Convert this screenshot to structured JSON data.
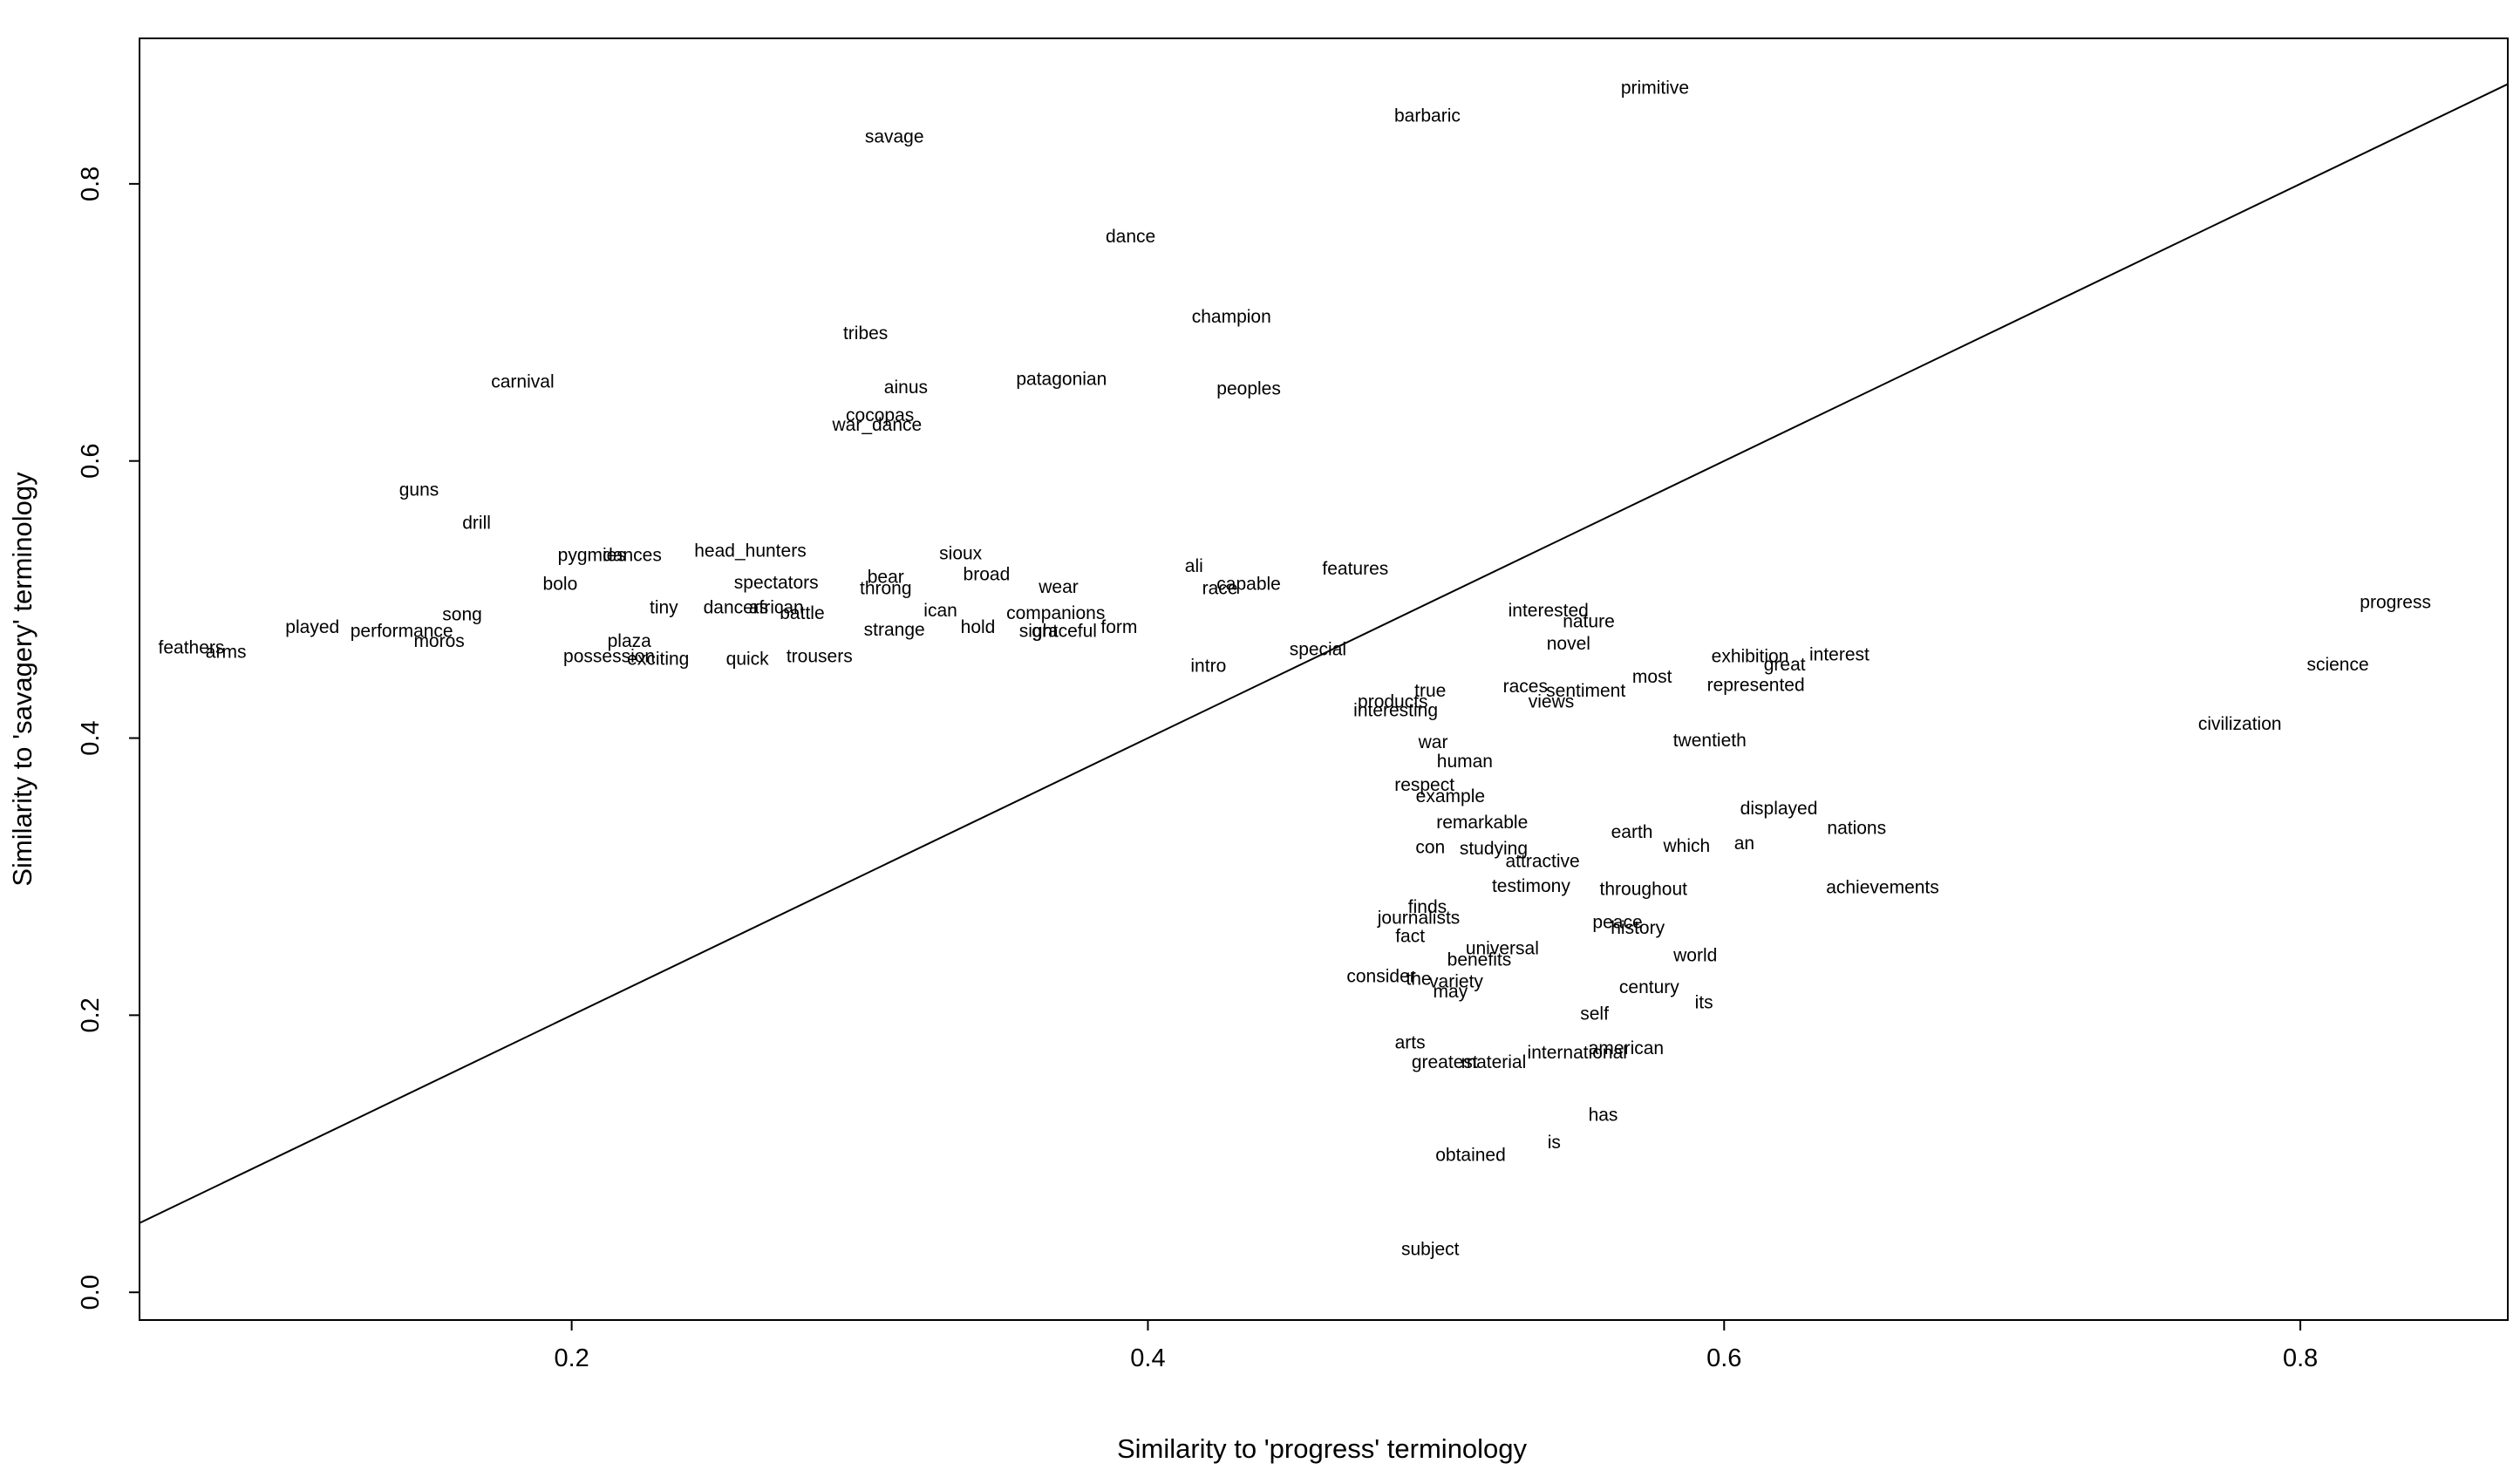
{
  "chart_data": {
    "type": "scatter",
    "title": "",
    "xlabel": "Similarity to 'progress' terminology",
    "ylabel": "Similarity to 'savagery' terminology",
    "xlim": [
      0.05,
      0.872
    ],
    "ylim": [
      -0.02,
      0.905
    ],
    "xticks": [
      "0.2",
      "0.4",
      "0.6",
      "0.8"
    ],
    "yticks": [
      "0.0",
      "0.2",
      "0.4",
      "0.6",
      "0.8"
    ],
    "grid": false,
    "legend": "none",
    "reference_line": {
      "intercept": 0.0,
      "slope": 1.0
    },
    "points": [
      {
        "label": "primitive",
        "x": 0.576,
        "y": 0.869
      },
      {
        "label": "barbaric",
        "x": 0.497,
        "y": 0.849
      },
      {
        "label": "savage",
        "x": 0.312,
        "y": 0.834
      },
      {
        "label": "dance",
        "x": 0.394,
        "y": 0.762
      },
      {
        "label": "champion",
        "x": 0.429,
        "y": 0.704
      },
      {
        "label": "tribes",
        "x": 0.302,
        "y": 0.692
      },
      {
        "label": "carnival",
        "x": 0.183,
        "y": 0.657
      },
      {
        "label": "patagonian",
        "x": 0.37,
        "y": 0.659
      },
      {
        "label": "ainus",
        "x": 0.316,
        "y": 0.653
      },
      {
        "label": "peoples",
        "x": 0.435,
        "y": 0.652
      },
      {
        "label": "cocopas",
        "x": 0.307,
        "y": 0.633
      },
      {
        "label": "war_dance",
        "x": 0.306,
        "y": 0.626
      },
      {
        "label": "guns",
        "x": 0.147,
        "y": 0.579
      },
      {
        "label": "drill",
        "x": 0.167,
        "y": 0.555
      },
      {
        "label": "head_hunters",
        "x": 0.262,
        "y": 0.535
      },
      {
        "label": "pygmies",
        "x": 0.207,
        "y": 0.532
      },
      {
        "label": "dances",
        "x": 0.221,
        "y": 0.532
      },
      {
        "label": "sioux",
        "x": 0.335,
        "y": 0.533
      },
      {
        "label": "ali",
        "x": 0.416,
        "y": 0.524
      },
      {
        "label": "features",
        "x": 0.472,
        "y": 0.522
      },
      {
        "label": "broad",
        "x": 0.344,
        "y": 0.518
      },
      {
        "label": "bear",
        "x": 0.309,
        "y": 0.516
      },
      {
        "label": "spectators",
        "x": 0.271,
        "y": 0.512
      },
      {
        "label": "capable",
        "x": 0.435,
        "y": 0.511
      },
      {
        "label": "bolo",
        "x": 0.196,
        "y": 0.511
      },
      {
        "label": "race",
        "x": 0.425,
        "y": 0.508
      },
      {
        "label": "throng",
        "x": 0.309,
        "y": 0.508
      },
      {
        "label": "wear",
        "x": 0.369,
        "y": 0.509
      },
      {
        "label": "tiny",
        "x": 0.232,
        "y": 0.494
      },
      {
        "label": "dancers",
        "x": 0.257,
        "y": 0.494
      },
      {
        "label": "african",
        "x": 0.271,
        "y": 0.494
      },
      {
        "label": "ican",
        "x": 0.328,
        "y": 0.492
      },
      {
        "label": "interested",
        "x": 0.539,
        "y": 0.492
      },
      {
        "label": "song",
        "x": 0.162,
        "y": 0.489
      },
      {
        "label": "battle",
        "x": 0.28,
        "y": 0.49
      },
      {
        "label": "companions",
        "x": 0.368,
        "y": 0.49
      },
      {
        "label": "nature",
        "x": 0.553,
        "y": 0.484
      },
      {
        "label": "progress",
        "x": 0.833,
        "y": 0.498
      },
      {
        "label": "played",
        "x": 0.11,
        "y": 0.48
      },
      {
        "label": "form",
        "x": 0.39,
        "y": 0.48
      },
      {
        "label": "strange",
        "x": 0.312,
        "y": 0.478
      },
      {
        "label": "hold",
        "x": 0.341,
        "y": 0.48
      },
      {
        "label": "sight",
        "x": 0.362,
        "y": 0.477
      },
      {
        "label": "graceful",
        "x": 0.371,
        "y": 0.477
      },
      {
        "label": "performance",
        "x": 0.141,
        "y": 0.477
      },
      {
        "label": "plaza",
        "x": 0.22,
        "y": 0.47
      },
      {
        "label": "moros",
        "x": 0.154,
        "y": 0.47
      },
      {
        "label": "novel",
        "x": 0.546,
        "y": 0.468
      },
      {
        "label": "feathers",
        "x": 0.068,
        "y": 0.465
      },
      {
        "label": "arms",
        "x": 0.08,
        "y": 0.462
      },
      {
        "label": "special",
        "x": 0.459,
        "y": 0.464
      },
      {
        "label": "exhibition",
        "x": 0.609,
        "y": 0.459
      },
      {
        "label": "interest",
        "x": 0.64,
        "y": 0.46
      },
      {
        "label": "possession",
        "x": 0.213,
        "y": 0.459
      },
      {
        "label": "exciting",
        "x": 0.23,
        "y": 0.457
      },
      {
        "label": "quick",
        "x": 0.261,
        "y": 0.457
      },
      {
        "label": "trousers",
        "x": 0.286,
        "y": 0.459
      },
      {
        "label": "science",
        "x": 0.813,
        "y": 0.453
      },
      {
        "label": "great",
        "x": 0.621,
        "y": 0.453
      },
      {
        "label": "intro",
        "x": 0.421,
        "y": 0.452
      },
      {
        "label": "most",
        "x": 0.575,
        "y": 0.444
      },
      {
        "label": "represented",
        "x": 0.611,
        "y": 0.438
      },
      {
        "label": "races",
        "x": 0.531,
        "y": 0.437
      },
      {
        "label": "true",
        "x": 0.498,
        "y": 0.434
      },
      {
        "label": "sentiment",
        "x": 0.552,
        "y": 0.434
      },
      {
        "label": "products",
        "x": 0.485,
        "y": 0.426
      },
      {
        "label": "views",
        "x": 0.54,
        "y": 0.426
      },
      {
        "label": "interesting",
        "x": 0.486,
        "y": 0.42
      },
      {
        "label": "civilization",
        "x": 0.779,
        "y": 0.41
      },
      {
        "label": "twentieth",
        "x": 0.595,
        "y": 0.398
      },
      {
        "label": "war",
        "x": 0.499,
        "y": 0.397
      },
      {
        "label": "human",
        "x": 0.51,
        "y": 0.383
      },
      {
        "label": "respect",
        "x": 0.496,
        "y": 0.366
      },
      {
        "label": "example",
        "x": 0.505,
        "y": 0.358
      },
      {
        "label": "displayed",
        "x": 0.619,
        "y": 0.349
      },
      {
        "label": "remarkable",
        "x": 0.516,
        "y": 0.339
      },
      {
        "label": "nations",
        "x": 0.646,
        "y": 0.335
      },
      {
        "label": "earth",
        "x": 0.568,
        "y": 0.332
      },
      {
        "label": "which",
        "x": 0.587,
        "y": 0.322
      },
      {
        "label": "an",
        "x": 0.607,
        "y": 0.324
      },
      {
        "label": "con",
        "x": 0.498,
        "y": 0.321
      },
      {
        "label": "studying",
        "x": 0.52,
        "y": 0.32
      },
      {
        "label": "attractive",
        "x": 0.537,
        "y": 0.311
      },
      {
        "label": "testimony",
        "x": 0.533,
        "y": 0.293
      },
      {
        "label": "throughout",
        "x": 0.572,
        "y": 0.291
      },
      {
        "label": "achievements",
        "x": 0.655,
        "y": 0.292
      },
      {
        "label": "finds",
        "x": 0.497,
        "y": 0.278
      },
      {
        "label": "journalists",
        "x": 0.494,
        "y": 0.27
      },
      {
        "label": "peace",
        "x": 0.563,
        "y": 0.267
      },
      {
        "label": "history",
        "x": 0.57,
        "y": 0.263
      },
      {
        "label": "fact",
        "x": 0.491,
        "y": 0.257
      },
      {
        "label": "universal",
        "x": 0.523,
        "y": 0.248
      },
      {
        "label": "world",
        "x": 0.59,
        "y": 0.243
      },
      {
        "label": "benefits",
        "x": 0.515,
        "y": 0.24
      },
      {
        "label": "consider",
        "x": 0.481,
        "y": 0.228
      },
      {
        "label": "the",
        "x": 0.494,
        "y": 0.226
      },
      {
        "label": "variety",
        "x": 0.507,
        "y": 0.224
      },
      {
        "label": "century",
        "x": 0.574,
        "y": 0.22
      },
      {
        "label": "may",
        "x": 0.505,
        "y": 0.217
      },
      {
        "label": "its",
        "x": 0.593,
        "y": 0.209
      },
      {
        "label": "self",
        "x": 0.555,
        "y": 0.201
      },
      {
        "label": "arts",
        "x": 0.491,
        "y": 0.18
      },
      {
        "label": "american",
        "x": 0.566,
        "y": 0.176
      },
      {
        "label": "international",
        "x": 0.549,
        "y": 0.173
      },
      {
        "label": "greatest",
        "x": 0.503,
        "y": 0.166
      },
      {
        "label": "material",
        "x": 0.52,
        "y": 0.166
      },
      {
        "label": "has",
        "x": 0.558,
        "y": 0.128
      },
      {
        "label": "is",
        "x": 0.541,
        "y": 0.108
      },
      {
        "label": "obtained",
        "x": 0.512,
        "y": 0.099
      },
      {
        "label": "subject",
        "x": 0.498,
        "y": 0.031
      }
    ]
  }
}
